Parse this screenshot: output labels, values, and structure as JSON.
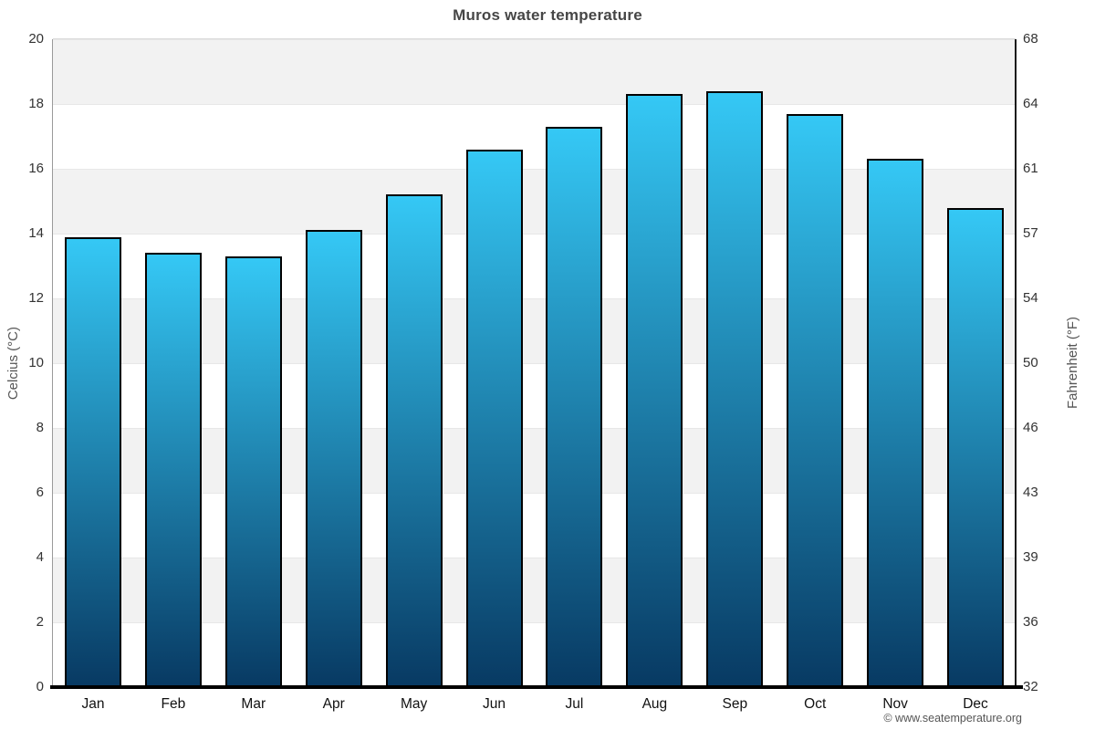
{
  "chart_data": {
    "type": "bar",
    "title": "Muros water temperature",
    "categories": [
      "Jan",
      "Feb",
      "Mar",
      "Apr",
      "May",
      "Jun",
      "Jul",
      "Aug",
      "Sep",
      "Oct",
      "Nov",
      "Dec"
    ],
    "values": [
      13.9,
      13.4,
      13.3,
      14.1,
      15.2,
      16.6,
      17.3,
      18.3,
      18.4,
      17.7,
      16.3,
      14.8
    ],
    "ylabel_left": "Celcius (°C)",
    "ylabel_right": "Fahrenheit (°F)",
    "ylim": [
      0,
      20
    ],
    "yticks_left": [
      20,
      18,
      16,
      14,
      12,
      10,
      8,
      6,
      4,
      2,
      0
    ],
    "yticks_right": [
      68,
      64,
      61,
      57,
      54,
      50,
      46,
      43,
      39,
      36,
      32
    ],
    "grid": "alternating-horizontal-bands",
    "legend": "none",
    "watermark": "© www.seatemperature.org",
    "colors": {
      "bar_gradient_top": "#35c8f5",
      "bar_gradient_bottom": "#083a63",
      "bar_border": "#010101",
      "band_shaded": "#f2f2f2",
      "band_plain": "#ffffff",
      "title_text": "#464646",
      "tick_text": "#333333",
      "axis_title_text": "#555555"
    }
  }
}
